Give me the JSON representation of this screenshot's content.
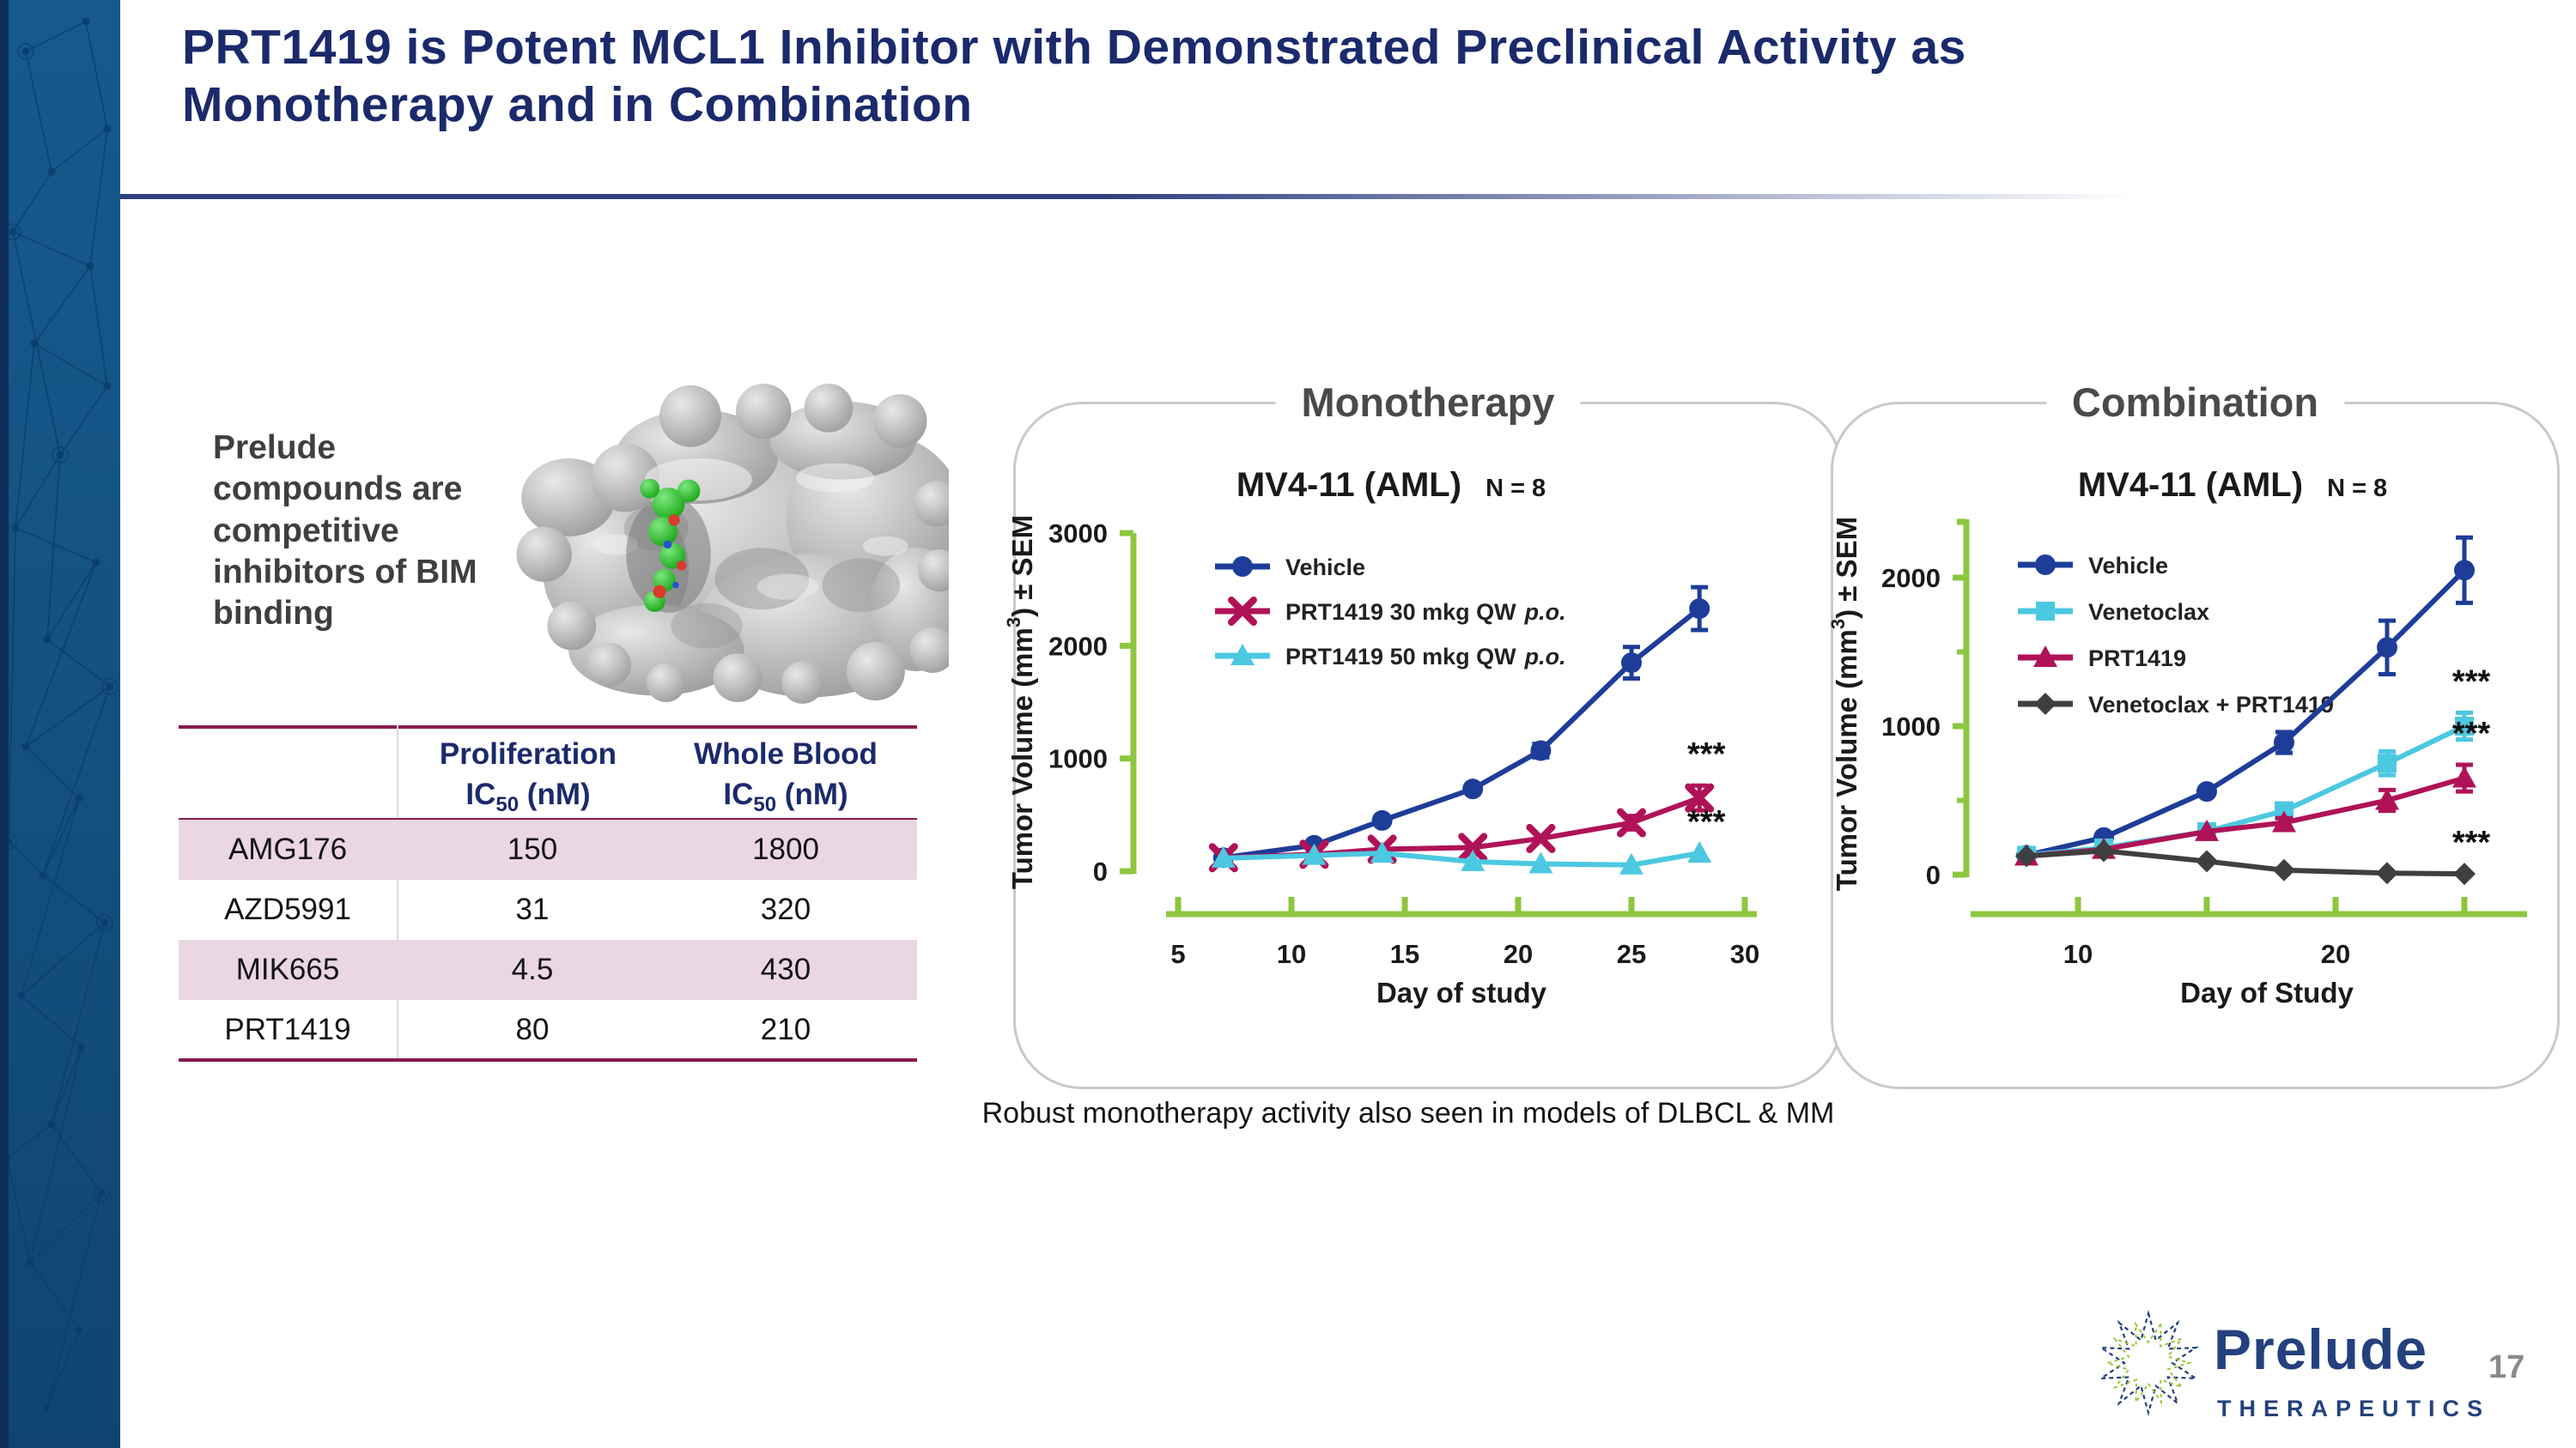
{
  "slide": {
    "title_lines": [
      "PRT1419 is Potent MCL1 Inhibitor with Demonstrated Preclinical Activity as",
      "Monotherapy and in Combination"
    ],
    "caption": "Robust monotherapy activity also seen in models of DLBCL & MM"
  },
  "left_note": {
    "text": "Prelude compounds are competitive inhibitors of BIM binding"
  },
  "ic50_table": {
    "headers": [
      {
        "line1": "Proliferation",
        "l2a": "IC",
        "l2sub": "50",
        "l2b": " (nM)"
      },
      {
        "line1": "Whole Blood",
        "l2a": "IC",
        "l2sub": "50",
        "l2b": " (nM)"
      }
    ],
    "rows": [
      [
        "AMG176",
        "150",
        "1800"
      ],
      [
        "AZD5991",
        "31",
        "320"
      ],
      [
        "MIK665",
        "4.5",
        "430"
      ],
      [
        "PRT1419",
        "80",
        "210"
      ]
    ]
  },
  "footer": {
    "logo_name": "Prelude",
    "logo_sub": "THERAPEUTICS",
    "page": "17"
  },
  "colors": {
    "accent_navy": "#1b2a6b",
    "band_blue": "#15568a",
    "band_mesh": "#0a3c6e",
    "maroon_rule": "#8a1a4e",
    "row_pink": "#ead7e3",
    "panel_border": "#c9c9c9",
    "panel_title_gray": "#4a4a4a",
    "axis_green": "#8dc63f",
    "vehicle_blue": "#1e3d98",
    "crimson": "#b01257",
    "cyan": "#4cc8e1",
    "combo_gray": "#3f3f3f",
    "page_number_gray": "#8a8a8a",
    "logo_navy": "#24417e",
    "logo_green": "#9dc53a"
  },
  "chart_data": [
    {
      "type": "line",
      "panel_title": "Monotherapy",
      "title": "MV4-11 (AML)",
      "n_label": "N = 8",
      "xlabel": "Day of study",
      "ylabel_parts": [
        "Tumor Volume (mm",
        "3",
        ") ± SEM"
      ],
      "xlim": [
        5,
        30
      ],
      "ylim": [
        0,
        3000
      ],
      "grid": false,
      "legend_position": "upper-left",
      "xticks": [
        {
          "v": 5,
          "label": "5"
        },
        {
          "v": 10,
          "label": "10"
        },
        {
          "v": 15,
          "label": "15"
        },
        {
          "v": 20,
          "label": "20"
        },
        {
          "v": 25,
          "label": "25"
        },
        {
          "v": 30,
          "label": "30"
        }
      ],
      "yticks": [
        {
          "v": 0,
          "label": "0"
        },
        {
          "v": 1000,
          "label": "1000"
        },
        {
          "v": 2000,
          "label": "2000"
        },
        {
          "v": 3000,
          "label": "3000"
        }
      ],
      "yminor": [],
      "x": [
        7,
        11,
        14,
        18,
        21,
        25,
        28
      ],
      "series": [
        {
          "name": "Vehicle",
          "marker": "circle",
          "color": "#1e3d98",
          "values": [
            120,
            230,
            450,
            730,
            1070,
            1850,
            2330
          ],
          "err": [
            0,
            0,
            0,
            0,
            60,
            140,
            190
          ]
        },
        {
          "name": "PRT1419 30 mkg QW",
          "suffix_italic": "p.o.",
          "marker": "x",
          "color": "#b01257",
          "values": [
            120,
            150,
            195,
            210,
            290,
            430,
            650
          ],
          "err": [
            55,
            0,
            0,
            0,
            0,
            60,
            110
          ],
          "annotation": "***"
        },
        {
          "name": "PRT1419 50 mkg QW",
          "suffix_italic": "p.o.",
          "marker": "triangle",
          "color": "#4cc8e1",
          "values": [
            115,
            140,
            160,
            85,
            65,
            55,
            160
          ],
          "err": [
            0,
            0,
            0,
            0,
            0,
            0,
            0
          ],
          "annotation": "***"
        }
      ]
    },
    {
      "type": "line",
      "panel_title": "Combination",
      "title": "MV4-11 (AML)",
      "n_label": "N = 8",
      "xlabel": "Day of Study",
      "ylabel_parts": [
        "Tumor Volume (mm",
        "3",
        ") ± SEM"
      ],
      "xlim": [
        6,
        27
      ],
      "ylim": [
        0,
        2400
      ],
      "grid": false,
      "legend_position": "upper-left",
      "xticks": [
        {
          "v": 10,
          "label": "10"
        },
        {
          "v": 15,
          "label": ""
        },
        {
          "v": 20,
          "label": "20"
        },
        {
          "v": 25,
          "label": ""
        }
      ],
      "yticks": [
        {
          "v": 0,
          "label": "0"
        },
        {
          "v": 1000,
          "label": "1000"
        },
        {
          "v": 2000,
          "label": "2000"
        }
      ],
      "yminor": [
        500,
        1500
      ],
      "x": [
        8,
        11,
        15,
        18,
        22,
        25
      ],
      "series": [
        {
          "name": "Vehicle",
          "marker": "circle",
          "color": "#1e3d98",
          "values": [
            130,
            250,
            560,
            890,
            1530,
            2050
          ],
          "err": [
            0,
            0,
            0,
            70,
            180,
            220
          ]
        },
        {
          "name": "Venetoclax",
          "marker": "square",
          "color": "#4cc8e1",
          "values": [
            130,
            180,
            290,
            430,
            750,
            1000
          ],
          "err": [
            0,
            0,
            0,
            30,
            80,
            90
          ],
          "annotation": "***"
        },
        {
          "name": "PRT1419",
          "marker": "triangle",
          "color": "#b01257",
          "values": [
            125,
            170,
            290,
            350,
            500,
            650
          ],
          "err": [
            0,
            0,
            0,
            30,
            70,
            90
          ],
          "annotation": "***"
        },
        {
          "name": "Venetoclax + PRT1419",
          "marker": "diamond",
          "color": "#3f3f3f",
          "values": [
            125,
            160,
            90,
            30,
            10,
            5
          ],
          "err": [
            0,
            0,
            0,
            0,
            0,
            0
          ],
          "annotation": "***"
        }
      ]
    }
  ]
}
